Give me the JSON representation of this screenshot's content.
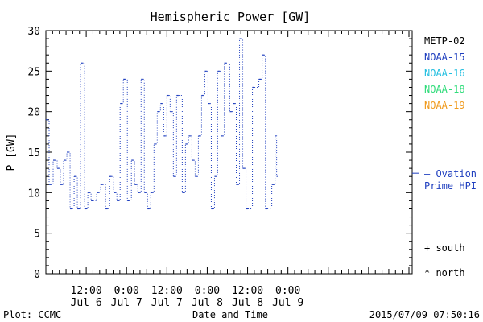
{
  "chart_data": {
    "type": "line",
    "title": "Hemispheric Power [GW]",
    "ylabel": "P [GW]",
    "xlabel": "Date and Time",
    "ylim": [
      0,
      30
    ],
    "xlim": [
      0,
      4.54
    ],
    "yticks": [
      0,
      5,
      10,
      15,
      20,
      25,
      30
    ],
    "xticks": [
      {
        "x": 0.5,
        "time": "12:00",
        "date": "Jul 6"
      },
      {
        "x": 1.0,
        "time": "0:00",
        "date": "Jul 7"
      },
      {
        "x": 1.5,
        "time": "12:00",
        "date": "Jul 7"
      },
      {
        "x": 2.0,
        "time": "0:00",
        "date": "Jul 8"
      },
      {
        "x": 2.5,
        "time": "12:00",
        "date": "Jul 8"
      },
      {
        "x": 3.0,
        "time": "0:00",
        "date": "Jul 9"
      }
    ],
    "x_unit_note": "",
    "legend": [
      {
        "name": "METP-02",
        "color": "#000000"
      },
      {
        "name": "NOAA-15",
        "color": "#1f3fbf"
      },
      {
        "name": "NOAA-16",
        "color": "#23bfe0"
      },
      {
        "name": "NOAA-18",
        "color": "#2fdc7a"
      },
      {
        "name": "NOAA-19",
        "color": "#f09a1c"
      }
    ],
    "series": [
      {
        "name": "NOAA-15",
        "color": "#1f3fbf",
        "points": [
          [
            0.0,
            19
          ],
          [
            0.04,
            11
          ],
          [
            0.09,
            14
          ],
          [
            0.14,
            13
          ],
          [
            0.18,
            11
          ],
          [
            0.22,
            14
          ],
          [
            0.26,
            15
          ],
          [
            0.3,
            8
          ],
          [
            0.35,
            12
          ],
          [
            0.39,
            8
          ],
          [
            0.43,
            26
          ],
          [
            0.48,
            8
          ],
          [
            0.52,
            10
          ],
          [
            0.56,
            9
          ],
          [
            0.63,
            10
          ],
          [
            0.68,
            11
          ],
          [
            0.74,
            8
          ],
          [
            0.79,
            12
          ],
          [
            0.84,
            10
          ],
          [
            0.88,
            9
          ],
          [
            0.92,
            21
          ],
          [
            0.96,
            24
          ],
          [
            1.01,
            9
          ],
          [
            1.06,
            14
          ],
          [
            1.1,
            11
          ],
          [
            1.14,
            10
          ],
          [
            1.18,
            24
          ],
          [
            1.22,
            10
          ],
          [
            1.26,
            8
          ],
          [
            1.3,
            10
          ],
          [
            1.34,
            16
          ],
          [
            1.38,
            20
          ],
          [
            1.42,
            21
          ],
          [
            1.46,
            17
          ],
          [
            1.5,
            22
          ],
          [
            1.54,
            20
          ],
          [
            1.58,
            12
          ],
          [
            1.62,
            22
          ],
          [
            1.69,
            10
          ],
          [
            1.73,
            16
          ],
          [
            1.77,
            17
          ],
          [
            1.81,
            14
          ],
          [
            1.85,
            12
          ],
          [
            1.89,
            17
          ],
          [
            1.93,
            22
          ],
          [
            1.97,
            25
          ],
          [
            2.01,
            21
          ],
          [
            2.05,
            8
          ],
          [
            2.09,
            12
          ],
          [
            2.13,
            25
          ],
          [
            2.17,
            17
          ],
          [
            2.21,
            26
          ],
          [
            2.28,
            20
          ],
          [
            2.32,
            21
          ],
          [
            2.36,
            11
          ],
          [
            2.4,
            29
          ],
          [
            2.44,
            13
          ],
          [
            2.48,
            8
          ],
          [
            2.56,
            23
          ],
          [
            2.64,
            24
          ],
          [
            2.68,
            27
          ],
          [
            2.72,
            8
          ],
          [
            2.8,
            11
          ],
          [
            2.84,
            17
          ],
          [
            2.86,
            12
          ]
        ]
      }
    ],
    "annotations": {
      "ovation_label_line1": "— Ovation",
      "ovation_label_line2": "Prime HPI",
      "ovation_value": 12.4,
      "south_marker": "+ south",
      "north_marker": "* north"
    }
  },
  "footer": {
    "plot_credit": "Plot: CCMC",
    "timestamp": "2015/07/09 07:50:16"
  }
}
